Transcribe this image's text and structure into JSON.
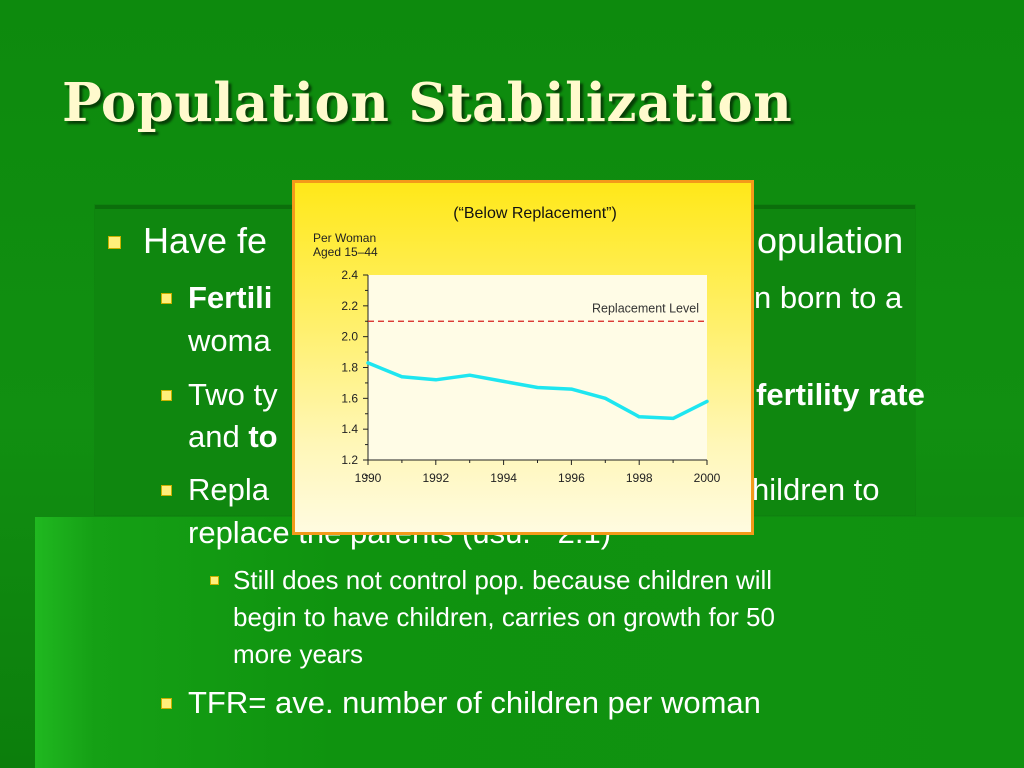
{
  "slide": {
    "title": "Population Stabilization",
    "colors": {
      "background": "#0d8a0d",
      "title": "#fffacd",
      "bullet": "#ffef7a",
      "chart_border": "#f39a1a",
      "line": "#1ee6f0",
      "replacement": "#d81e1e"
    }
  },
  "bullets": {
    "l1_text": "Have fe",
    "l1_text_right": "opulation",
    "l2a_bold": "Fertili",
    "l2a_right": "n born to a",
    "l2a_line2": "woma",
    "l2b_text": "Two ty",
    "l2b_bold_right": "fertility rate",
    "l2b_and": "and ",
    "l2b_bold2": "to",
    "l2c_text": "Repla",
    "l2c_right": "hildren to",
    "l2c_line2": "replace the parents (usu. ~2.1)",
    "l3_line1": "Still does not control pop. because children will",
    "l3_line2": "begin to have children, carries on growth for 50",
    "l3_line3": "more years",
    "l2d_text": "TFR= ave. number of children per woman"
  },
  "chart_data": {
    "type": "line",
    "title": "(“Below Replacement”)",
    "ylabel": "Per Woman Aged 15–44",
    "ylabel_lines": [
      "Per Woman",
      "Aged 15–44"
    ],
    "x": [
      1990,
      1991,
      1992,
      1993,
      1994,
      1995,
      1996,
      1997,
      1998,
      1999,
      2000
    ],
    "x_ticks": [
      "1990",
      "1992",
      "1994",
      "1996",
      "1998",
      "2000"
    ],
    "y_ticks": [
      "1.2",
      "1.4",
      "1.6",
      "1.8",
      "2.0",
      "2.2",
      "2.4"
    ],
    "xlim": [
      1990,
      2000
    ],
    "ylim": [
      1.2,
      2.4
    ],
    "series": [
      {
        "values": [
          1.83,
          1.74,
          1.72,
          1.75,
          1.71,
          1.67,
          1.66,
          1.6,
          1.48,
          1.47,
          1.58
        ]
      }
    ],
    "reference_line": {
      "label": "Replacement Level",
      "value": 2.1
    },
    "grid": false
  }
}
